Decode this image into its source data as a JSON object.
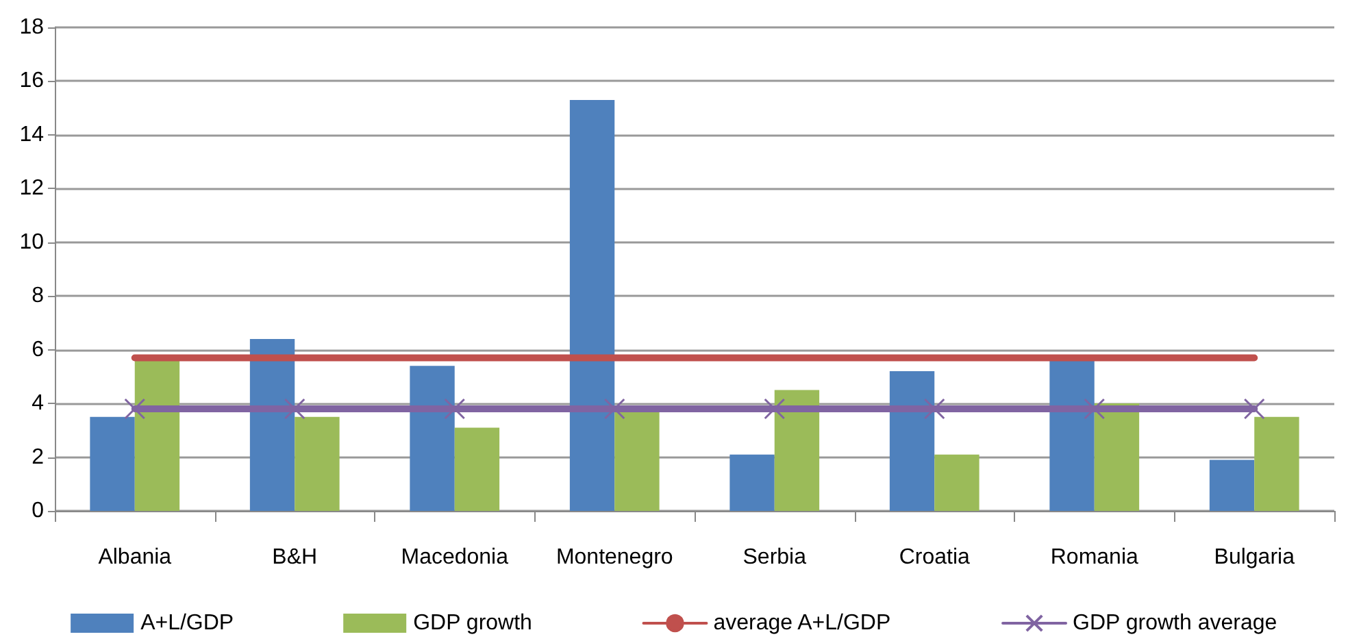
{
  "chart_data": {
    "type": "bar",
    "categories": [
      "Albania",
      "B&H",
      "Macedonia",
      "Montenegro",
      "Serbia",
      "Croatia",
      "Romania",
      "Bulgaria"
    ],
    "series": [
      {
        "name": "A+L/GDP",
        "color": "#4f81bd",
        "values": [
          3.5,
          6.4,
          5.4,
          15.3,
          2.1,
          5.2,
          5.6,
          1.9
        ]
      },
      {
        "name": "GDP growth",
        "color": "#9bbb59",
        "values": [
          5.6,
          3.5,
          3.1,
          3.7,
          4.5,
          2.1,
          4.0,
          3.5
        ]
      },
      {
        "name": "average A+L/GDP",
        "type": "line",
        "color": "#c0504d",
        "marker": "none",
        "values": [
          5.7,
          5.7,
          5.7,
          5.7,
          5.7,
          5.7,
          5.7,
          5.7
        ]
      },
      {
        "name": "GDP growth average",
        "type": "line",
        "color": "#8064a2",
        "marker": "cross",
        "values": [
          3.8,
          3.8,
          3.8,
          3.8,
          3.8,
          3.8,
          3.8,
          3.8
        ]
      }
    ],
    "ylim": [
      0,
      18
    ],
    "yticks": [
      0,
      2,
      4,
      6,
      8,
      10,
      12,
      14,
      16,
      18
    ],
    "grid": "y",
    "legend": "bottom"
  }
}
